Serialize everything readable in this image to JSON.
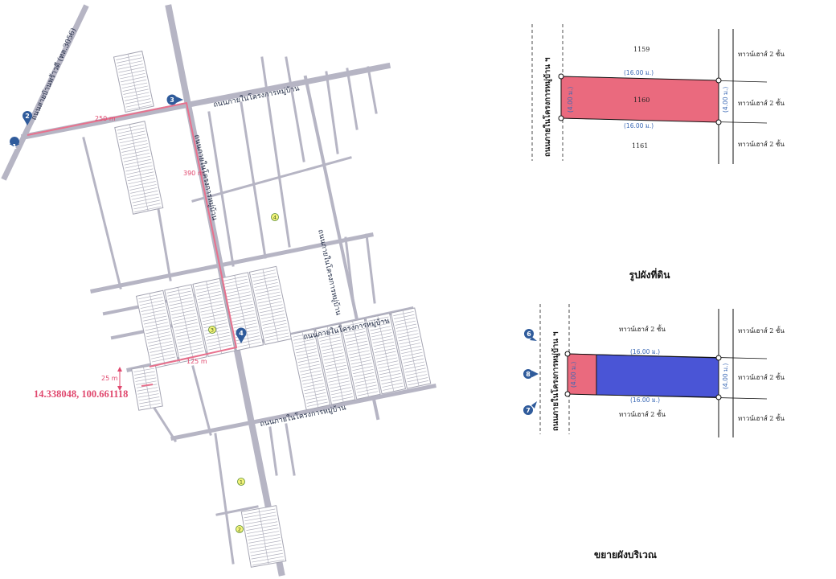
{
  "map": {
    "coordinates": "14.338048, 100.661118",
    "distance_1": "250 m",
    "distance_2": "390 m",
    "distance_3": "125 m",
    "distance_4": "25 m",
    "main_road_name": "ถนนสายบ้านพร้าวดี (ทล.3056)",
    "road_top": "ถนนภายในโครงการหมู่บ้าน",
    "road_vertical": "ถนนภายในโครงการหมู่บ้าน",
    "road_right_vertical": "ถนนภายในโครงการหมู่บ้าน",
    "road_middle": "ถนนภายในโครงการหมู่บ้าน",
    "road_bottom": "ถนนภายในโครงการหมู่บ้าน",
    "pins": [
      "1",
      "2",
      "3",
      "4"
    ],
    "yellow_markers": [
      "1",
      "2",
      "3",
      "4"
    ]
  },
  "plot": {
    "caption": "รูปผังที่ดิน",
    "road_label": "ถนนภายในโครงการหมู่บ้าน ฯ",
    "lot_above": "1159",
    "lot_subject": "1160",
    "lot_below": "1161",
    "width_top": "(16.00 ม.)",
    "width_bottom": "(16.00 ม.)",
    "depth_left": "(4.00 ม.)",
    "depth_right": "(4.00 ม.)",
    "neighbor_1": "ทาวน์เฮาส์ 2 ชั้น",
    "neighbor_2": "ทาวน์เฮาส์ 2 ชั้น",
    "neighbor_3": "ทาวน์เฮาส์ 2 ชั้น",
    "fill_color": "#ea6a7e"
  },
  "site": {
    "caption": "ขยายผังบริเวณ",
    "road_label": "ถนนภายในโครงการหมู่บ้าน ฯ",
    "width_top": "(16.00 ม.)",
    "width_bottom": "(16.00 ม.)",
    "depth_left": "(4.00 ม.)",
    "depth_right": "(4.00 ม.)",
    "top_label": "ทาวน์เฮาส์ 2 ชั้น",
    "bottom_label": "ทาวน์เฮาส์ 2 ชั้น",
    "neighbor_1": "ทาวน์เฮาส์ 2 ชั้น",
    "neighbor_2": "ทาวน์เฮาส์ 2 ชั้น",
    "neighbor_3": "ทาวน์เฮาส์ 2 ชั้น",
    "pins": [
      "6",
      "8",
      "7"
    ],
    "building_color": "#4a55d6",
    "front_color": "#ea6a7e"
  }
}
